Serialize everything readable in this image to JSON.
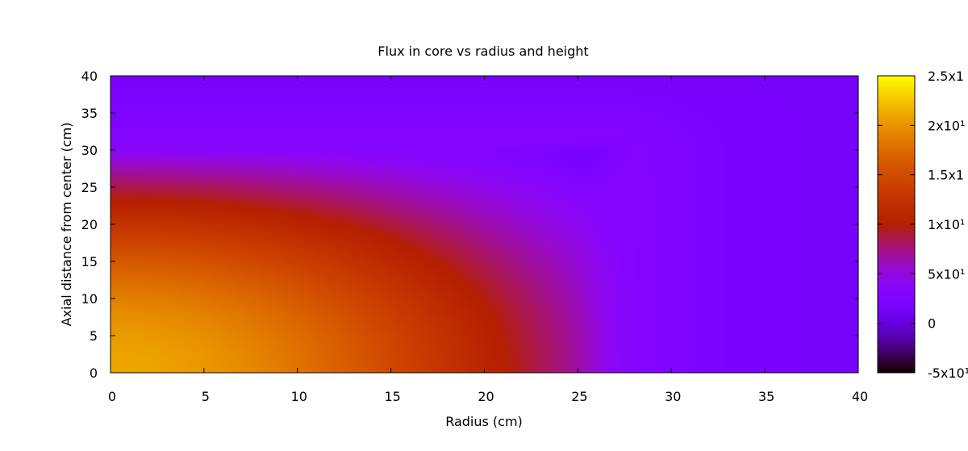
{
  "chart_data": {
    "type": "heatmap",
    "title": "Flux in core vs radius and height",
    "xlabel": "Radius (cm)",
    "ylabel": "Axial distance from center (cm)",
    "xlim": [
      0,
      40
    ],
    "ylim": [
      0,
      40
    ],
    "x_ticks": [
      "0",
      "5",
      "10",
      "15",
      "20",
      "25",
      "30",
      "35",
      "40"
    ],
    "y_ticks": [
      "0",
      "5",
      "10",
      "15",
      "20",
      "25",
      "30",
      "35",
      "40"
    ],
    "colorbar": {
      "range": [
        -500000000000.0,
        2500000000000.0
      ],
      "tick_values": [
        -500000000000.0,
        0,
        500000000000.0,
        1000000000000.0,
        1500000000000.0,
        2000000000000.0,
        2500000000000.0
      ],
      "tick_labels": [
        "-5x10¹",
        "0",
        "5x10¹",
        "1x10¹",
        "1.5x1",
        "2x10¹",
        "2.5x1"
      ],
      "palette": "gnuplot"
    },
    "field": {
      "description_model": "separable cos(y) x J0-like radial profile inside core; low flux outside",
      "peak_value": 2100000000000.0,
      "core_radius": 26.5,
      "core_half_height": 30,
      "outer_value_near": 300000000000.0,
      "outer_value_far": 120000000000.0
    },
    "colors": {
      "palette_stops": [
        "#000000",
        "#7f00ff",
        "#c11a10",
        "#e5a800",
        "#ffff00"
      ]
    }
  }
}
